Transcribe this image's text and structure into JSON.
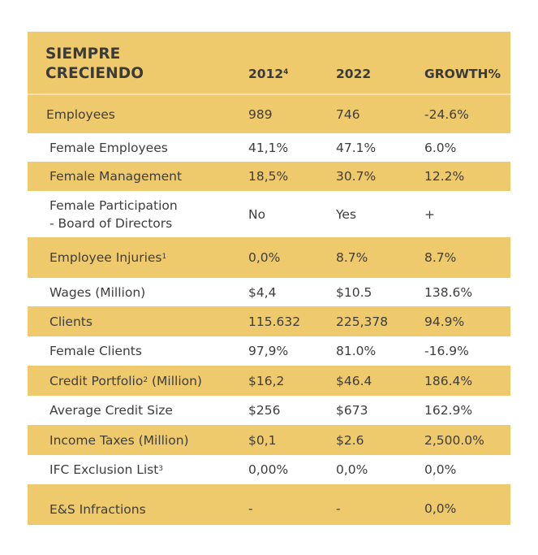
{
  "table": {
    "title_line1": "SIEMPRE",
    "title_line2": "CRECIENDO",
    "columns": [
      {
        "label": "2012",
        "superscript": "4"
      },
      {
        "label": "2022",
        "superscript": ""
      },
      {
        "label": "GROWTH%",
        "superscript": ""
      }
    ],
    "rows": [
      {
        "label": "Employees",
        "sup": "",
        "label_line2": "",
        "v2012": "989",
        "v2022": "746",
        "growth": "-24.6%",
        "style": "yellow"
      },
      {
        "label": "Female Employees",
        "sup": "",
        "label_line2": "",
        "v2012": "41,1%",
        "v2022": "47.1%",
        "growth": "6.0%",
        "style": "white"
      },
      {
        "label": "Female Management",
        "sup": "",
        "label_line2": "",
        "v2012": "18,5%",
        "v2022": "30.7%",
        "growth": "12.2%",
        "style": "yellow"
      },
      {
        "label": "Female Participation",
        "sup": "",
        "label_line2": "- Board of Directors",
        "v2012": "No",
        "v2022": "Yes",
        "growth": "+",
        "style": "white"
      },
      {
        "label": "Employee Injuries",
        "sup": "1",
        "label_line2": "",
        "v2012": "0,0%",
        "v2022": "8.7%",
        "growth": "8.7%",
        "style": "yellow"
      },
      {
        "label": "Wages (Million)",
        "sup": "",
        "label_line2": "",
        "v2012": "$4,4",
        "v2022": "$10.5",
        "growth": "138.6%",
        "style": "white"
      },
      {
        "label": "Clients",
        "sup": "",
        "label_line2": "",
        "v2012": "115.632",
        "v2022": "225,378",
        "growth": "94.9%",
        "style": "yellow"
      },
      {
        "label": "Female Clients",
        "sup": "",
        "label_line2": "",
        "v2012": "97,9%",
        "v2022": "81.0%",
        "growth": "-16.9%",
        "style": "white"
      },
      {
        "label": "Credit Portfolio",
        "sup": "2",
        "label_suffix": " (Million)",
        "label_line2": "",
        "v2012": "$16,2",
        "v2022": "$46.4",
        "growth": "186.4%",
        "style": "yellow"
      },
      {
        "label": "Average Credit Size",
        "sup": "",
        "label_line2": "",
        "v2012": "$256",
        "v2022": "$673",
        "growth": "162.9%",
        "style": "white"
      },
      {
        "label": "Income Taxes (Million)",
        "sup": "",
        "label_line2": "",
        "v2012": "$0,1",
        "v2022": "$2.6",
        "growth": "2,500.0%",
        "style": "yellow"
      },
      {
        "label": "IFC Exclusion List",
        "sup": "3",
        "label_line2": "",
        "v2012": "0,00%",
        "v2022": "0,0%",
        "growth": "0,0%",
        "style": "white"
      },
      {
        "label": "E&S Infractions",
        "sup": "",
        "label_line2": "",
        "v2012": "-",
        "v2022": "-",
        "growth": "0,0%",
        "style": "yellow"
      }
    ]
  },
  "colors": {
    "accent_yellow": "#EFCA6C",
    "header_divider": "#F7E2AB",
    "text": "#3d3d3d"
  }
}
